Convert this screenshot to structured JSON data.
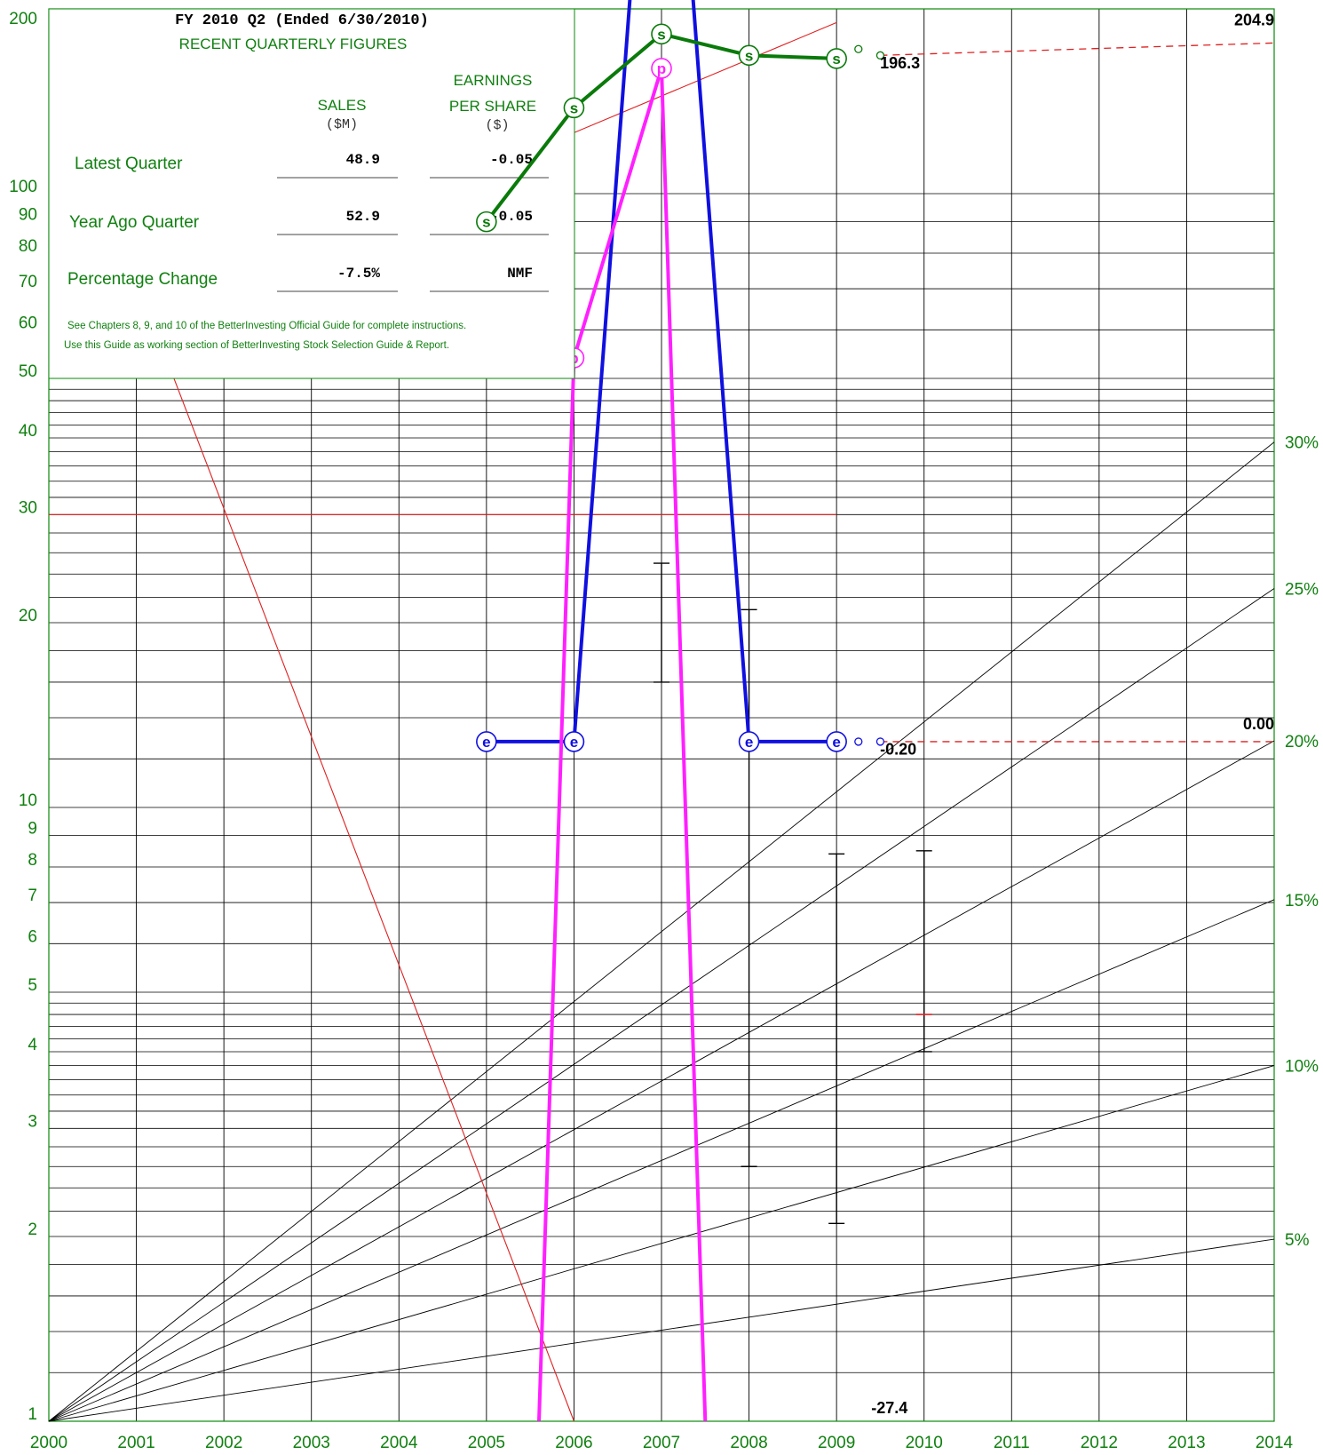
{
  "colors": {
    "grid": "#0a8a0a",
    "label": "#108010",
    "sales": "#0a7a0a",
    "eps": "#1010e0",
    "price": "#ff20ff",
    "trend": "#e02020",
    "hbar": "#000000"
  },
  "chart_data": {
    "type": "line",
    "y_scale": "log",
    "ylim": [
      1,
      200
    ],
    "xlim": [
      2000,
      2014
    ],
    "y_tick_labels": [
      "1",
      "2",
      "3",
      "4",
      "5",
      "6",
      "7",
      "8",
      "9",
      "10",
      "20",
      "30",
      "40",
      "50",
      "60",
      "70",
      "80",
      "90",
      "100",
      "200"
    ],
    "x_tick_labels": [
      "2000",
      "2001",
      "2002",
      "2003",
      "2004",
      "2005",
      "2006",
      "2007",
      "2008",
      "2009",
      "2010",
      "2011",
      "2012",
      "2013",
      "2014"
    ],
    "growth_rate_labels": [
      "5%",
      "10%",
      "15%",
      "20%",
      "25%",
      "30%"
    ],
    "growth_rates": [
      0.05,
      0.1,
      0.15,
      0.2,
      0.25,
      0.3
    ],
    "series": [
      {
        "name": "Sales",
        "marker": "s",
        "x": [
          2005,
          2006,
          2007,
          2008,
          2009
        ],
        "y": [
          90,
          138,
          182,
          168,
          166
        ]
      },
      {
        "name": "EPS",
        "marker": "e",
        "x": [
          2005,
          2006,
          2007,
          2008,
          2009
        ],
        "y": [
          12.8,
          12.8,
          1000,
          12.8,
          12.8
        ]
      },
      {
        "name": "Pre-tax Profit",
        "marker": "p",
        "x": [
          2005.6,
          2006,
          2007,
          2007.5
        ],
        "y": [
          1,
          54,
          160,
          1
        ]
      }
    ],
    "sales_projection": {
      "from": [
        2009.5,
        168
      ],
      "to": [
        2014,
        176
      ]
    },
    "eps_projection": {
      "from": [
        2009.5,
        12.8
      ],
      "to": [
        2014,
        12.8
      ]
    },
    "trend_lines": [
      {
        "from": [
          2000,
          55
        ],
        "to": [
          2009,
          190
        ]
      },
      {
        "from": [
          2000,
          170
        ],
        "to": [
          2006,
          1
        ]
      }
    ],
    "reference_line": {
      "y": 30,
      "x": [
        2000,
        2009
      ]
    },
    "price_bars": [
      {
        "x": 2007,
        "high": 25,
        "low": 16
      },
      {
        "x": 2008,
        "high": 21,
        "low": 2.6
      },
      {
        "x": 2009,
        "high": 8.4,
        "low": 2.1
      },
      {
        "x": 2010,
        "high": 8.5,
        "low": 4.0,
        "close": 4.6
      }
    ],
    "annotations": [
      {
        "text": "204.9",
        "x": 2014,
        "y": 188
      },
      {
        "text": "196.3",
        "x": 2009.7,
        "y": 160
      },
      {
        "text": "0.00",
        "x": 2014,
        "y": 13.4
      },
      {
        "text": "-0.20",
        "x": 2009.7,
        "y": 12.2
      },
      {
        "text": "-27.4",
        "x": 2009.6,
        "y": 1.03
      }
    ]
  },
  "box": {
    "title": "FY 2010 Q2 (Ended 6/30/2010)",
    "subtitle": "RECENT QUARTERLY FIGURES",
    "col1_header_1": "SALES",
    "col1_header_2": "($M)",
    "col2_header_1": "EARNINGS",
    "col2_header_2": "PER SHARE",
    "col2_header_3": "($)",
    "rows": [
      {
        "label": "Latest Quarter",
        "sales": "48.9",
        "eps": "-0.05"
      },
      {
        "label": "Year Ago Quarter",
        "sales": "52.9",
        "eps": "-0.05"
      },
      {
        "label": "Percentage Change",
        "sales": "-7.5%",
        "eps": "NMF"
      }
    ],
    "note1": "See Chapters 8, 9, and 10 of the BetterInvesting Official Guide for complete instructions.",
    "note2": "Use this Guide as working section of BetterInvesting Stock Selection Guide & Report."
  }
}
